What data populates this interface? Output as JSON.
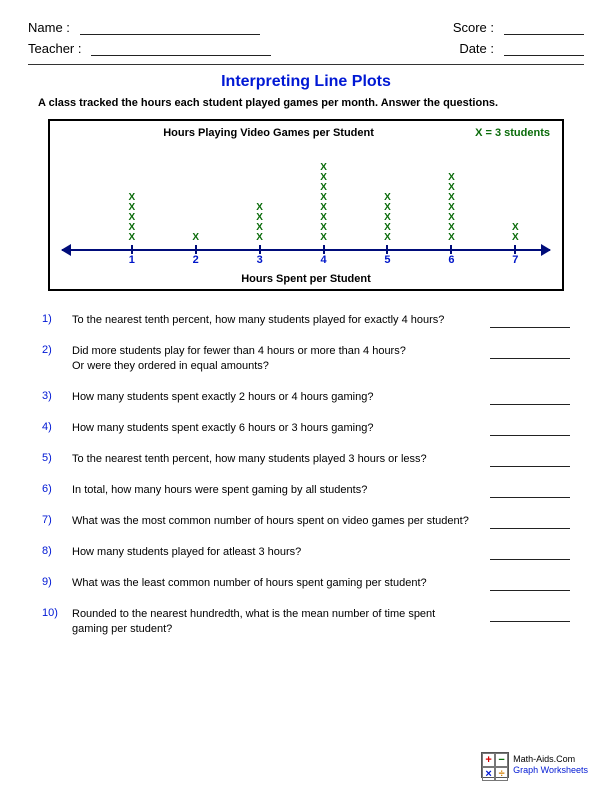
{
  "header": {
    "name_label": "Name :",
    "teacher_label": "Teacher :",
    "score_label": "Score :",
    "date_label": "Date :"
  },
  "title": {
    "text": "Interpreting Line Plots",
    "color": "#0018d4"
  },
  "subtitle": "A class tracked the hours each student played games per month. Answer the questions.",
  "plot": {
    "title": "Hours Playing Video Games per Student",
    "legend": "X = 3 students",
    "legend_color": "#0a6b0a",
    "axis_label": "Hours Spent per Student",
    "x_mark_color": "#0a6b0a",
    "line_color": "#000c7a",
    "tick_label_color": "#0016c9",
    "categories": [
      1,
      2,
      3,
      4,
      5,
      6,
      7
    ],
    "x_counts": [
      5,
      1,
      4,
      8,
      5,
      7,
      2
    ],
    "tick_positions_pct": [
      14.3,
      27.4,
      40.5,
      53.6,
      66.7,
      79.8,
      92.9
    ]
  },
  "questions": [
    {
      "n": "1)",
      "text": "To the nearest tenth percent, how many students played for exactly 4 hours?"
    },
    {
      "n": "2)",
      "text": "Did more students play for fewer than 4 hours or more than 4 hours?\nOr were they ordered in equal amounts?"
    },
    {
      "n": "3)",
      "text": "How many students spent exactly 2 hours or 4 hours gaming?"
    },
    {
      "n": "4)",
      "text": "How many students spent exactly 6 hours or 3 hours gaming?"
    },
    {
      "n": "5)",
      "text": "To the nearest tenth percent, how many students played 3 hours or less?"
    },
    {
      "n": "6)",
      "text": "In total, how many hours were spent gaming by all students?"
    },
    {
      "n": "7)",
      "text": "What was the most common number of hours spent on video games per student?"
    },
    {
      "n": "8)",
      "text": "How many students played for atleast 3 hours?"
    },
    {
      "n": "9)",
      "text": "What was the least common number of hours spent gaming per student?"
    },
    {
      "n": "10)",
      "text": "Rounded to the nearest hundredth, what is the mean number of time spent\ngaming per student?"
    }
  ],
  "question_number_color": "#0018d4",
  "footer": {
    "site": "Math-Aids.Com",
    "sub": "Graph Worksheets",
    "logo_colors": {
      "plus": "#d40000",
      "minus": "#0a6b0a",
      "times": "#0018d4",
      "div": "#d47f00"
    }
  }
}
